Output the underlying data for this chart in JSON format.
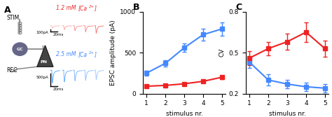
{
  "panel_B": {
    "x": [
      1,
      2,
      3,
      4,
      5
    ],
    "blue_y": [
      250,
      370,
      560,
      720,
      790
    ],
    "blue_err": [
      30,
      40,
      50,
      70,
      80
    ],
    "red_y": [
      90,
      100,
      120,
      150,
      200
    ],
    "red_err": [
      15,
      10,
      12,
      15,
      20
    ],
    "ylabel": "EPSC amplitude (pA)",
    "xlabel": "stimulus nr.",
    "title": "B",
    "ylim": [
      0,
      1000
    ],
    "yticks": [
      0,
      500,
      1000
    ]
  },
  "panel_C": {
    "x": [
      1,
      2,
      3,
      4,
      5
    ],
    "blue_y": [
      0.43,
      0.3,
      0.27,
      0.25,
      0.24
    ],
    "blue_err": [
      0.04,
      0.04,
      0.03,
      0.03,
      0.03
    ],
    "red_y": [
      0.46,
      0.53,
      0.58,
      0.65,
      0.53
    ],
    "red_err": [
      0.05,
      0.05,
      0.06,
      0.07,
      0.06
    ],
    "ylabel": "CV",
    "xlabel": "stimulus nr.",
    "title": "C",
    "ylim": [
      0.2,
      0.8
    ],
    "yticks": [
      0.2,
      0.5,
      0.8
    ]
  },
  "blue_color": "#4488FF",
  "red_color": "#EE2222",
  "trace_red": "#FF6666",
  "trace_blue": "#66AAFF",
  "marker": "s",
  "markersize": 4,
  "linewidth": 1.5,
  "capsize": 2,
  "elinewidth": 1.0,
  "stim_label": "STIM",
  "gc_label": "GC",
  "rec_label": "REC",
  "pn_label": "PN",
  "red_ca_label": "1.2 mM [Ca2+]",
  "blue_ca_label": "2.5 mM [Ca2+]",
  "scale_red_amp": "100pA",
  "scale_red_time": "20ms",
  "scale_blue_amp": "500pA",
  "scale_blue_time": "20ms"
}
